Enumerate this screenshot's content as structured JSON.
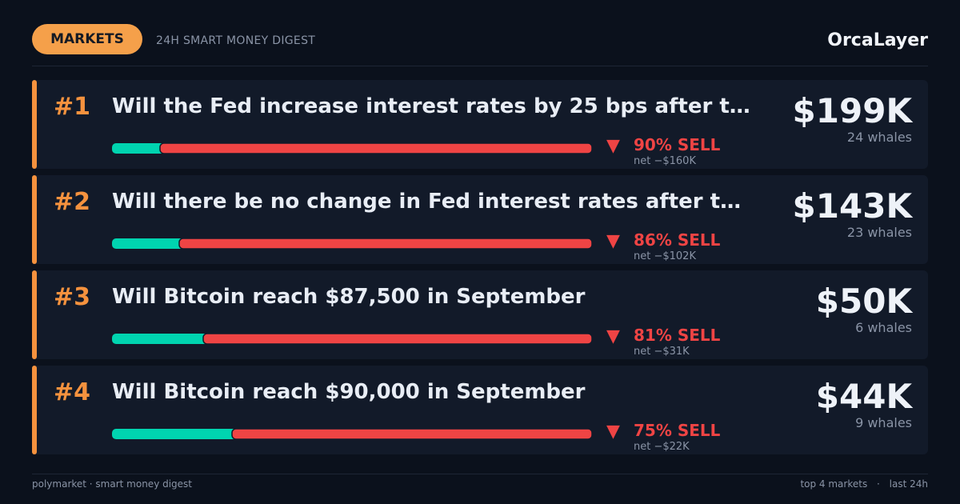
{
  "header": {
    "badge": "MARKETS",
    "subtitle": "24H SMART MONEY DIGEST",
    "brand": "OrcaLayer"
  },
  "markets": [
    {
      "rank": "#1",
      "question": "Will the Fed increase interest rates by 25 bps after t…",
      "volume": "$199K",
      "whales": "24 whales",
      "sell_pct": 90,
      "sell_label": "90% SELL",
      "net": "net −$160K"
    },
    {
      "rank": "#2",
      "question": "Will there be no change in Fed interest rates after t…",
      "volume": "$143K",
      "whales": "23 whales",
      "sell_pct": 86,
      "sell_label": "86% SELL",
      "net": "net −$102K"
    },
    {
      "rank": "#3",
      "question": "Will Bitcoin reach $87,500 in September",
      "volume": "$50K",
      "whales": "6 whales",
      "sell_pct": 81,
      "sell_label": "81% SELL",
      "net": "net −$31K"
    },
    {
      "rank": "#4",
      "question": "Will Bitcoin reach $90,000 in September",
      "volume": "$44K",
      "whales": "9 whales",
      "sell_pct": 75,
      "sell_label": "75% SELL",
      "net": "net −$22K"
    }
  ],
  "footer": {
    "left": "polymarket · smart money digest",
    "right_1": "top 4 markets",
    "right_2": "last 24h"
  }
}
